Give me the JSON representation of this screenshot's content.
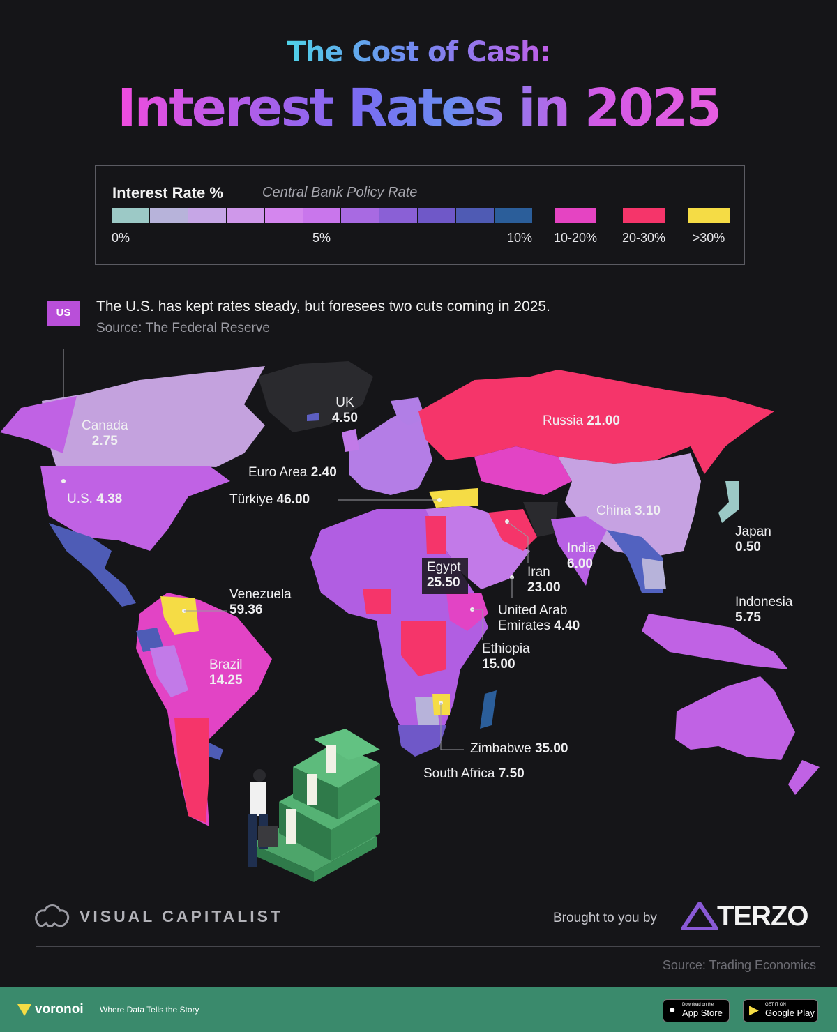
{
  "header": {
    "title_line1": "The Cost of Cash:",
    "title_line2": "Interest Rates in 2025"
  },
  "legend": {
    "title": "Interest Rate %",
    "subtitle": "Central Bank Policy Rate",
    "scale_colors": [
      "#9cc9c6",
      "#b7b3da",
      "#c6a6e6",
      "#cf98ea",
      "#d486ee",
      "#c976ec",
      "#a86ae2",
      "#8a60d6",
      "#6f58c8",
      "#4f5bb4",
      "#2b5e9a"
    ],
    "tick_0": "0%",
    "tick_5": "5%",
    "tick_10": "10%",
    "categories": [
      {
        "label": "10-20%",
        "color": "#e544c2"
      },
      {
        "label": "20-30%",
        "color": "#f5356a"
      },
      {
        "label": ">30%",
        "color": "#f5dc45"
      }
    ]
  },
  "callout": {
    "tag": "US",
    "text": "The U.S. has kept rates steady, but foresees two cuts coming in 2025.",
    "source": "Source: The Federal Reserve"
  },
  "countries": [
    {
      "name": "UK",
      "rate": "4.50"
    },
    {
      "name": "Canada",
      "rate": "2.75"
    },
    {
      "name": "Euro Area",
      "rate": "2.40"
    },
    {
      "name": "U.S.",
      "rate": "4.38"
    },
    {
      "name": "Türkiye",
      "rate": "46.00"
    },
    {
      "name": "Russia",
      "rate": "21.00"
    },
    {
      "name": "China",
      "rate": "3.10"
    },
    {
      "name": "Japan",
      "rate": "0.50"
    },
    {
      "name": "India",
      "rate": "6.00"
    },
    {
      "name": "Iran",
      "rate": "23.00"
    },
    {
      "name": "Egypt",
      "rate": "25.50"
    },
    {
      "name": "Venezuela",
      "rate": "59.36"
    },
    {
      "name": "United Arab Emirates",
      "name_line1": "United Arab",
      "name_line2": "Emirates",
      "rate": "4.40"
    },
    {
      "name": "Indonesia",
      "rate": "5.75"
    },
    {
      "name": "Ethiopia",
      "rate": "15.00"
    },
    {
      "name": "Brazil",
      "rate": "14.25"
    },
    {
      "name": "Zimbabwe",
      "rate": "35.00"
    },
    {
      "name": "South Africa",
      "rate": "7.50"
    }
  ],
  "footer": {
    "publisher": "VISUAL CAPITALIST",
    "brought_by": "Brought to you by",
    "sponsor": "TERZO",
    "source": "Source: Trading Economics"
  },
  "bottom_bar": {
    "brand": "voronoi",
    "tagline": "Where Data Tells the Story",
    "app_store_small": "Download on the",
    "app_store": "App Store",
    "google_play_small": "GET IT ON",
    "google_play": "Google Play"
  }
}
